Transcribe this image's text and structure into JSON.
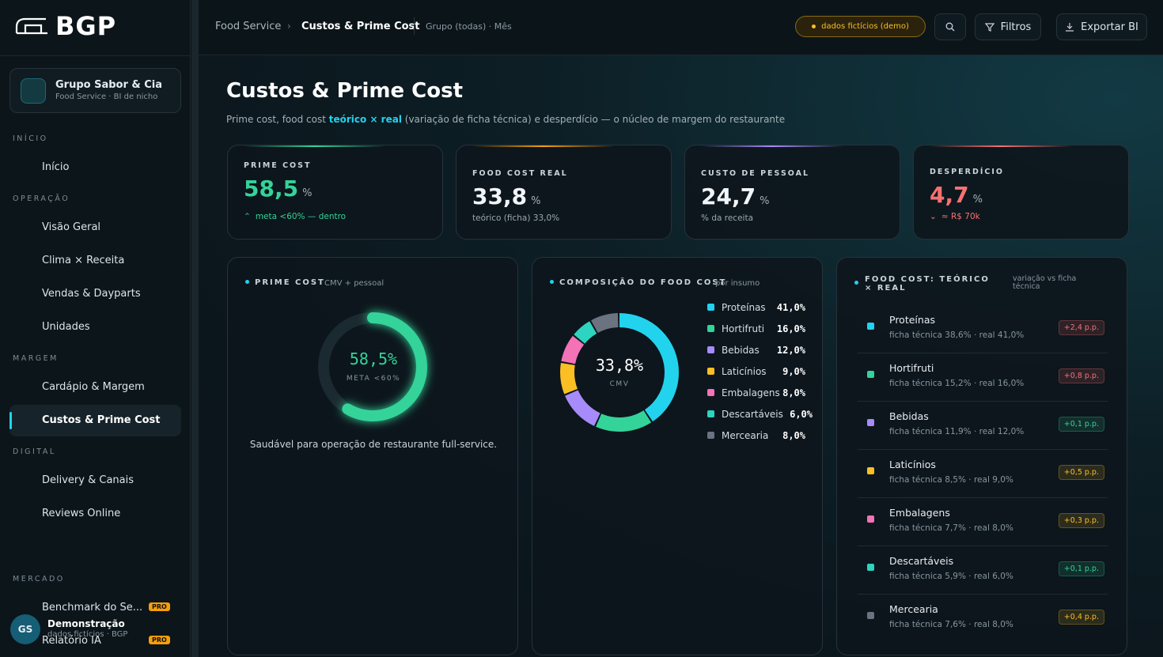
{
  "sidebar": {
    "logo": "BGP",
    "org": {
      "name": "Grupo Sabor & Cia",
      "subtitle": "Food Service · BI de nicho"
    },
    "sections": [
      {
        "title": "INÍCIO",
        "items": [
          {
            "label": "Início"
          }
        ]
      },
      {
        "title": "OPERAÇÃO",
        "items": [
          {
            "label": "Visão Geral"
          },
          {
            "label": "Clima × Receita"
          },
          {
            "label": "Vendas & Dayparts"
          },
          {
            "label": "Unidades"
          }
        ]
      },
      {
        "title": "MARGEM",
        "items": [
          {
            "label": "Cardápio & Margem"
          },
          {
            "label": "Custos & Prime Cost"
          }
        ]
      },
      {
        "title": "DIGITAL",
        "items": [
          {
            "label": "Delivery & Canais"
          },
          {
            "label": "Reviews Online"
          }
        ]
      },
      {
        "title": "MERCADO",
        "items": [
          {
            "label": "Benchmark do Se...",
            "badge": "PRO"
          },
          {
            "label": "Relatório IA",
            "badge": "PRO"
          }
        ]
      }
    ],
    "user": {
      "initials": "GS",
      "name": "Demonstração",
      "subtitle": "dados fictícios · BGP"
    }
  },
  "topbar": {
    "breadcrumb": [
      "Food Service",
      "Custos & Prime Cost"
    ],
    "context": "Grupo (todas) · Mês",
    "demo_badge": "dados fictícios (demo)",
    "filters": "Filtros",
    "export": "Exportar BI"
  },
  "page": {
    "title": "Custos & Prime Cost",
    "subtitle": [
      "Prime cost, food cost ",
      "teórico × real",
      " (variação de ficha técnica) e desperdício — o núcleo de margem do restaurante"
    ]
  },
  "kpis": [
    {
      "label": "PRIME COST",
      "value": "58,5",
      "unit": "%",
      "note": "meta <60% — dentro",
      "accent": "#34d399",
      "value_color": "#34d399",
      "note_color": "#34d399"
    },
    {
      "label": "FOOD COST REAL",
      "value": "33,8",
      "unit": "%",
      "note": "teórico (ficha) 33,0%",
      "accent": "#f59e0b",
      "value_color": "#f1f5f9",
      "note_color": "#9aa8b2"
    },
    {
      "label": "CUSTO DE PESSOAL",
      "value": "24,7",
      "unit": "%",
      "note": "% da receita",
      "accent": "#a78bfa",
      "value_color": "#f1f5f9",
      "note_color": "#9aa8b2"
    },
    {
      "label": "DESPERDÍCIO",
      "value": "4,7",
      "unit": "%",
      "note": "≈ R$ 70k",
      "accent": "#f87171",
      "value_color": "#f87171",
      "note_color": "#f87171"
    }
  ],
  "prime_card": {
    "title": "PRIME COST",
    "subtitle": "CMV + pessoal",
    "value": 58.5,
    "value_label": "58,5%",
    "center_label": "META <60%",
    "caption": "Saudável para operação de restaurante full-service.",
    "color": "#34d399"
  },
  "composition": {
    "title": "COMPOSIÇÃO DO FOOD COST",
    "subtitle": "por insumo",
    "center": "33,8%",
    "center_label": "CMV",
    "items": [
      {
        "name": "Proteínas",
        "value": 41,
        "value_label": "41,0%",
        "color": "#22d3ee"
      },
      {
        "name": "Hortifruti",
        "value": 16,
        "value_label": "16,0%",
        "color": "#34d399"
      },
      {
        "name": "Bebidas",
        "value": 12,
        "value_label": "12,0%",
        "color": "#a78bfa"
      },
      {
        "name": "Laticínios",
        "value": 9,
        "value_label": "9,0%",
        "color": "#fbbf24"
      },
      {
        "name": "Embalagens",
        "value": 8,
        "value_label": "8,0%",
        "color": "#f472b6"
      },
      {
        "name": "Descartáveis",
        "value": 6,
        "value_label": "6,0%",
        "color": "#2dd4bf"
      },
      {
        "name": "Mercearia",
        "value": 8,
        "value_label": "8,0%",
        "color": "#6b7280"
      }
    ]
  },
  "variance": {
    "title": "FOOD COST: TEÓRICO × REAL",
    "subtitle": "variação vs ficha técnica",
    "rows": [
      {
        "name": "Proteínas",
        "detail": "ficha técnica 38,6% · real 41,0%",
        "delta": "+2,4 p.p.",
        "color": "#22d3ee",
        "delta_color": "#f87171"
      },
      {
        "name": "Hortifruti",
        "detail": "ficha técnica 15,2% · real 16,0%",
        "delta": "+0,8 p.p.",
        "color": "#34d399",
        "delta_color": "#f87171"
      },
      {
        "name": "Bebidas",
        "detail": "ficha técnica 11,9% · real 12,0%",
        "delta": "+0,1 p.p.",
        "color": "#a78bfa",
        "delta_color": "#34d399"
      },
      {
        "name": "Laticínios",
        "detail": "ficha técnica 8,5% · real 9,0%",
        "delta": "+0,5 p.p.",
        "color": "#fbbf24",
        "delta_color": "#fbbf24"
      },
      {
        "name": "Embalagens",
        "detail": "ficha técnica 7,7% · real 8,0%",
        "delta": "+0,3 p.p.",
        "color": "#f472b6",
        "delta_color": "#fbbf24"
      },
      {
        "name": "Descartáveis",
        "detail": "ficha técnica 5,9% · real 6,0%",
        "delta": "+0,1 p.p.",
        "color": "#2dd4bf",
        "delta_color": "#34d399"
      },
      {
        "name": "Mercearia",
        "detail": "ficha técnica 7,6% · real 8,0%",
        "delta": "+0,4 p.p.",
        "color": "#6b7280",
        "delta_color": "#fbbf24"
      }
    ]
  }
}
